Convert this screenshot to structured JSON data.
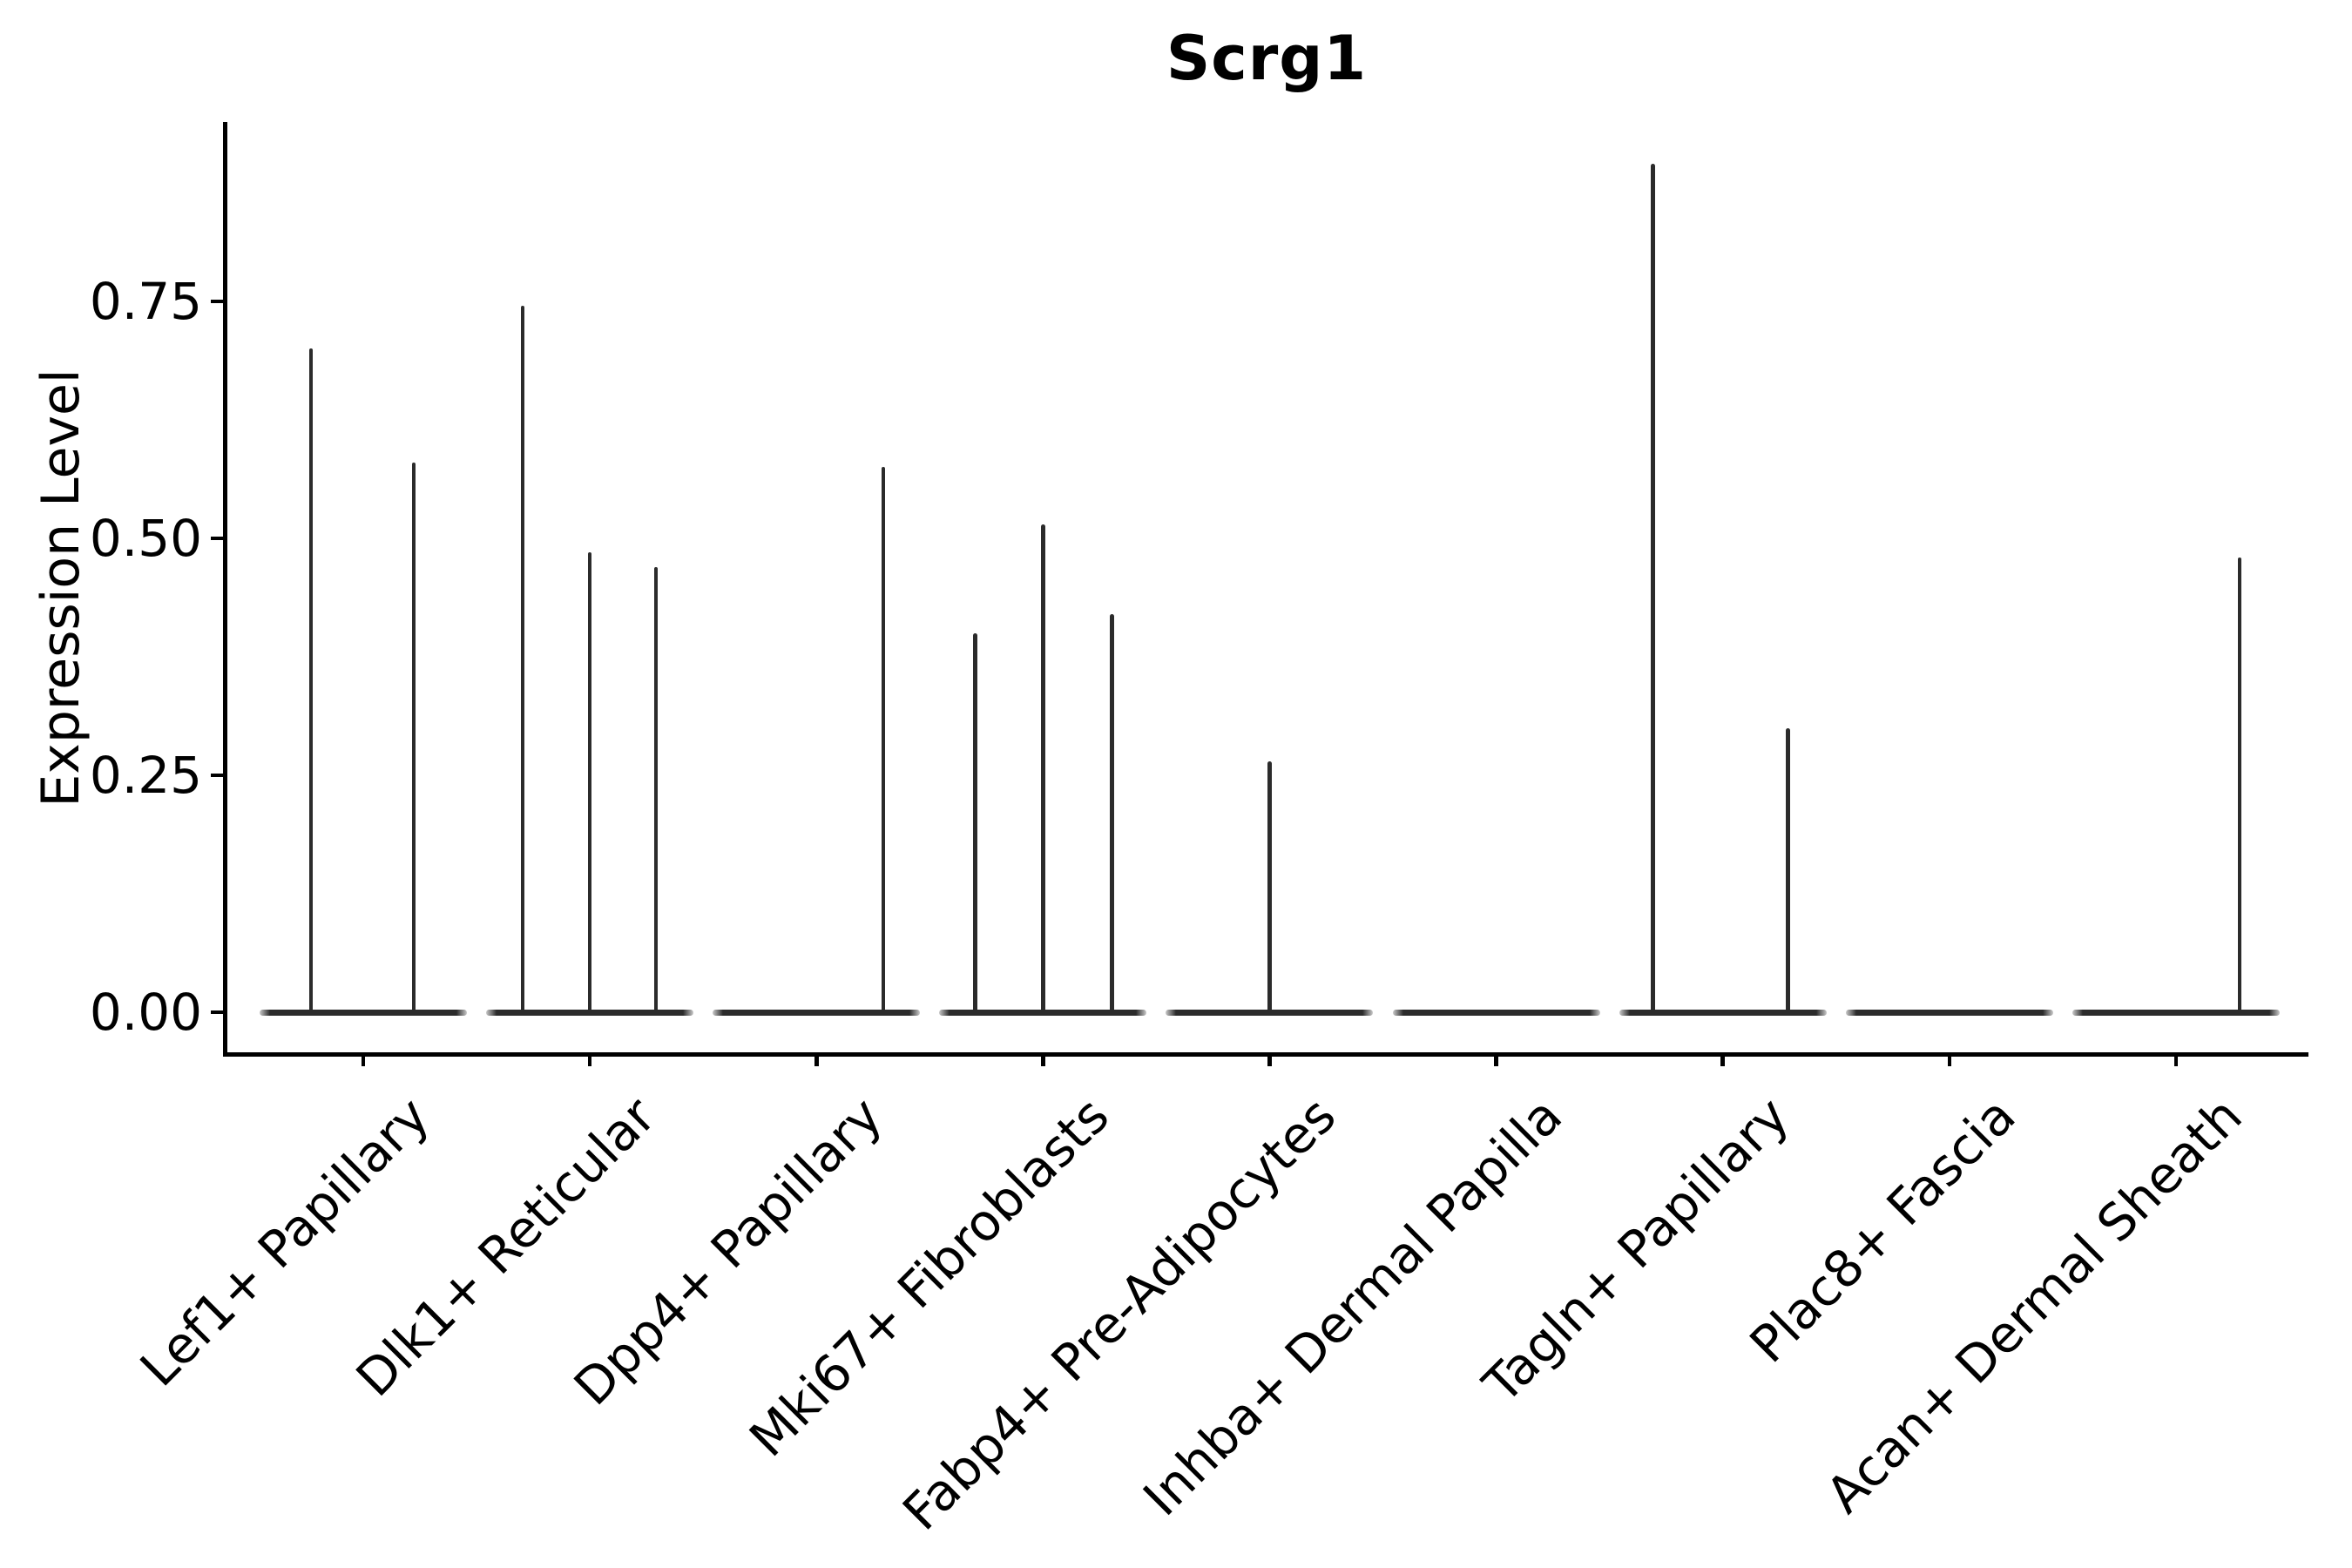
{
  "figure": {
    "background": "#ffffff"
  },
  "chart_data": {
    "type": "violin",
    "title": "Scrg1",
    "xlabel": "",
    "ylabel": "Expression Level",
    "categories": [
      "Lef1+ Papillary",
      "Dlk1+ Reticular",
      "Dpp4+ Papillary",
      "Mki67+ Fibroblasts",
      "Fabp4+ Pre-Adipocytes",
      "Inhba+ Dermal Papilla",
      "Tagln+ Papillary",
      "Plac8+ Fascia",
      "Acan+ Dermal Sheath"
    ],
    "y_ticks": [
      0.0,
      0.25,
      0.5,
      0.75
    ],
    "y_tick_labels": [
      "0.00",
      "0.25",
      "0.50",
      "0.75"
    ],
    "ylim": [
      -0.045,
      0.94
    ],
    "grid": false,
    "legend": "none",
    "description": "Violin plot of Scrg1 expression per fibroblast subtype; most cells have zero expression (flat baseline violins) with thin density spikes reaching the maximum expression values listed.",
    "groups": [
      {
        "category": "Lef1+ Papillary",
        "zero_baseline": true,
        "spikes": [
          {
            "dx": -60,
            "value": 0.7
          },
          {
            "dx": 58,
            "value": 0.58
          }
        ]
      },
      {
        "category": "Dlk1+ Reticular",
        "zero_baseline": true,
        "spikes": [
          {
            "dx": -77,
            "value": 0.745
          },
          {
            "dx": 0,
            "value": 0.485
          },
          {
            "dx": 76,
            "value": 0.47
          }
        ]
      },
      {
        "category": "Dpp4+ Papillary",
        "zero_baseline": true,
        "spikes": [
          {
            "dx": 77,
            "value": 0.575
          }
        ]
      },
      {
        "category": "Mki67+ Fibroblasts",
        "zero_baseline": true,
        "spikes": [
          {
            "dx": -78,
            "value": 0.4
          },
          {
            "dx": 0,
            "value": 0.515
          },
          {
            "dx": 79,
            "value": 0.42
          }
        ]
      },
      {
        "category": "Fabp4+ Pre-Adipocytes",
        "zero_baseline": true,
        "spikes": [
          {
            "dx": 0,
            "value": 0.265
          }
        ]
      },
      {
        "category": "Inhba+ Dermal Papilla",
        "zero_baseline": true,
        "spikes": []
      },
      {
        "category": "Tagln+ Papillary",
        "zero_baseline": true,
        "spikes": [
          {
            "dx": -80,
            "value": 0.895
          },
          {
            "dx": 75,
            "value": 0.3
          }
        ]
      },
      {
        "category": "Plac8+ Fascia",
        "zero_baseline": true,
        "spikes": []
      },
      {
        "category": "Acan+ Dermal Sheath",
        "zero_baseline": true,
        "spikes": [
          {
            "dx": 73,
            "value": 0.48
          }
        ]
      }
    ],
    "colors": {
      "violin": "#2b2b2b",
      "axis": "#000000",
      "text": "#000000",
      "background": "#ffffff"
    }
  }
}
